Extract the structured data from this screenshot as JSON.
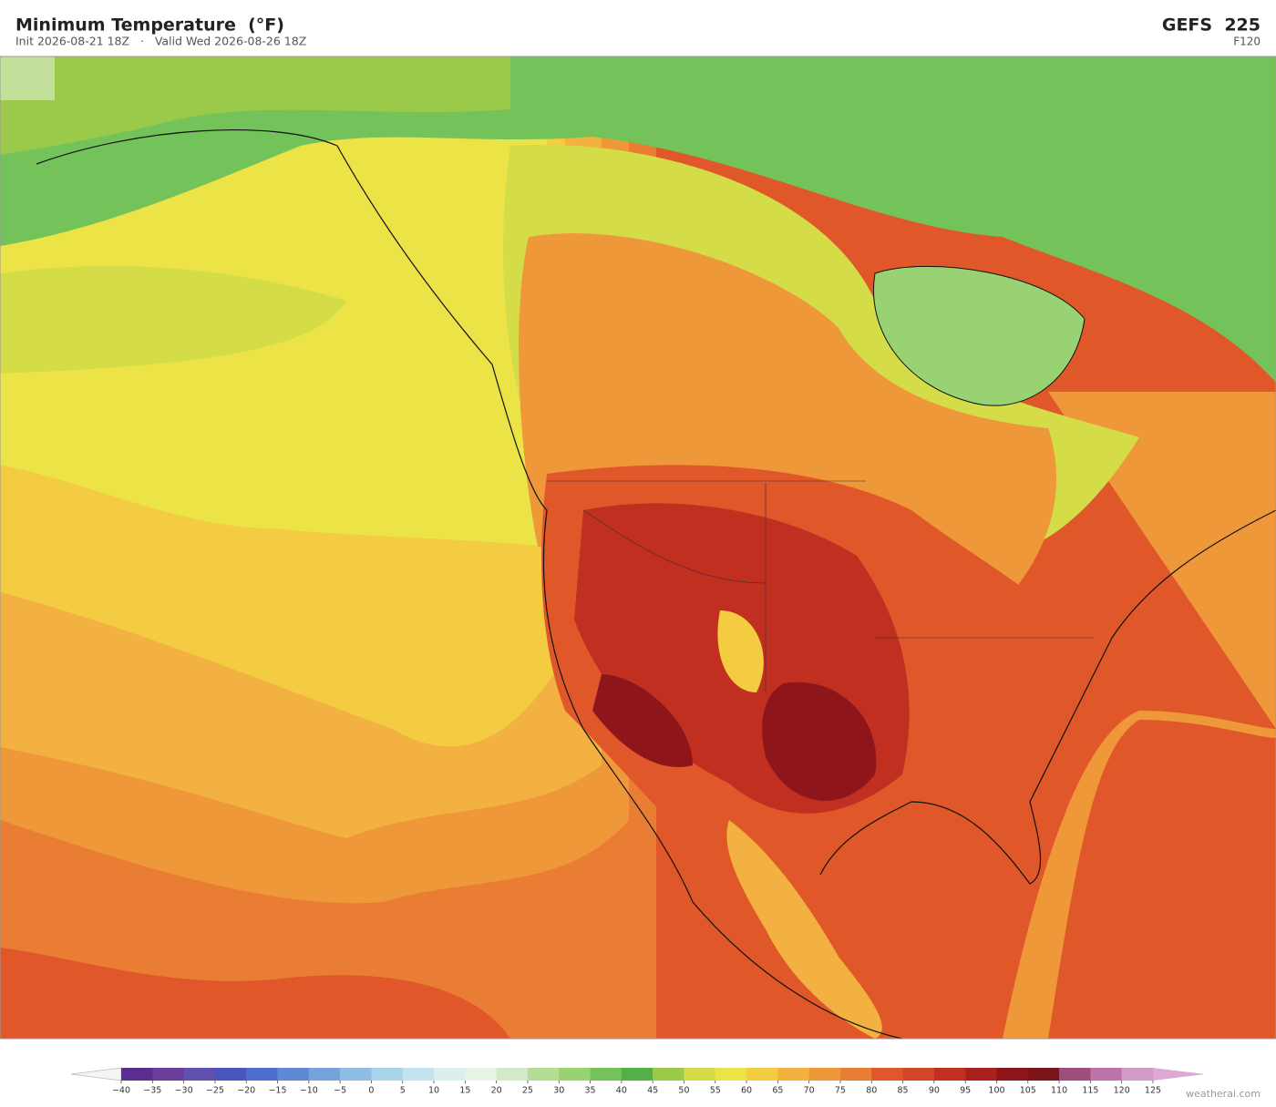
{
  "header": {
    "title": "Minimum Temperature  (°F)",
    "subtitle": "Init 2026-08-21 18Z   ·   Valid Wed 2026-08-26 18Z",
    "model": "GEFS  225",
    "forecast_hour": "F120"
  },
  "colorbar": {
    "ticks": [
      {
        "value": -40,
        "label": "−40"
      },
      {
        "value": -35,
        "label": "−35"
      },
      {
        "value": -30,
        "label": "−30"
      },
      {
        "value": -25,
        "label": "−25"
      },
      {
        "value": -20,
        "label": "−20"
      },
      {
        "value": -15,
        "label": "−15"
      },
      {
        "value": -10,
        "label": "−10"
      },
      {
        "value": -5,
        "label": "−5"
      },
      0,
      5,
      10,
      15,
      20,
      25,
      30,
      35,
      40,
      45,
      50,
      55,
      60,
      65,
      70,
      75,
      80,
      85,
      90,
      95,
      100,
      105,
      110,
      115,
      120,
      125
    ],
    "colors": [
      "#5a2d91",
      "#6a3d9a",
      "#6050b0",
      "#4a55c0",
      "#4f6fd0",
      "#6088d6",
      "#76a3da",
      "#8fbde3",
      "#a9d4ea",
      "#c3e4ef",
      "#dcefef",
      "#e6f4e6",
      "#d2eac8",
      "#b6dd96",
      "#98d272",
      "#74c35a",
      "#52b048",
      "#9bc94a",
      "#d4dc48",
      "#ece447",
      "#f3cc42",
      "#f2b140",
      "#ef983a",
      "#e97d33",
      "#e0582a",
      "#d24525",
      "#c02f20",
      "#a9201c",
      "#8e161a",
      "#7a1418",
      "#9c4f7a",
      "#bd72a8",
      "#d49ac8"
    ],
    "over_color": "#dda8d6"
  },
  "footer": {
    "credit": "weatherai.com"
  }
}
